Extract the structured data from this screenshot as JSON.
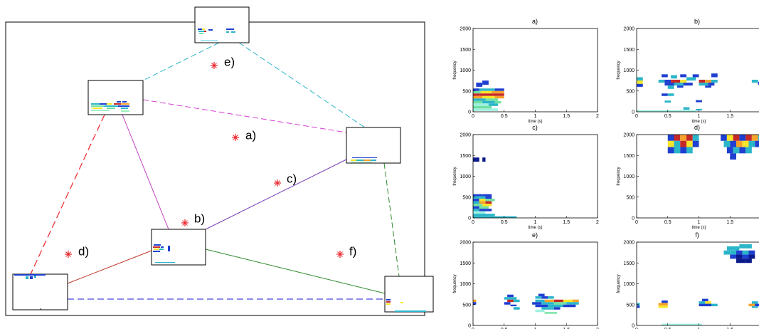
{
  "network": {
    "points": [
      "a)",
      "b)",
      "c)",
      "d)",
      "e)",
      "f)"
    ]
  },
  "panels": [
    {
      "title": "a)"
    },
    {
      "title": "b)"
    },
    {
      "title": "c)"
    },
    {
      "title": "d)"
    },
    {
      "title": "e)"
    },
    {
      "title": "f)"
    }
  ],
  "axes": {
    "y_label": "frequency",
    "x_label": "time (s)",
    "y_ticks": [
      "0",
      "500",
      "1000",
      "1500",
      "2000"
    ],
    "x_ticks": [
      "0",
      "0.5",
      "1",
      "1.5",
      "2"
    ]
  },
  "colors": {
    "marker": "#e8262b",
    "edge_cyan": "#2bb5c9",
    "edge_magenta": "#d43fd4",
    "edge_red": "#e8262b",
    "edge_green": "#2e8b2e",
    "edge_blue": "#1a1ad0",
    "edge_purple": "#7a3fb5"
  }
}
